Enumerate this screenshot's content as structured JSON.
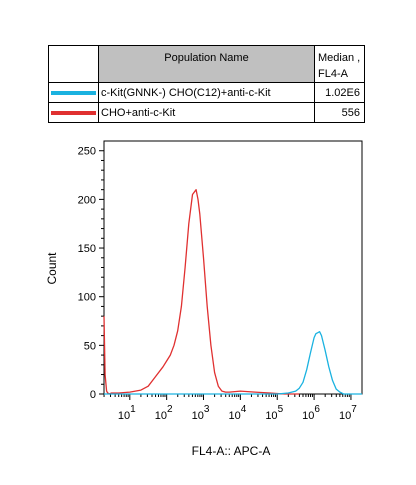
{
  "legend": {
    "header_population": "Population Name",
    "header_median_line1": "Median ,",
    "header_median_line2": "FL4-A",
    "rows": [
      {
        "name": "c-Kit(GNNK-) CHO(C12)+anti-c-Kit",
        "median": "1.02E6",
        "color": "#1ab2e0"
      },
      {
        "name": "CHO+anti-c-Kit",
        "median": "556",
        "color": "#e03030"
      }
    ]
  },
  "chart_data": {
    "type": "line",
    "xlabel": "FL4-A:: APC-A",
    "ylabel": "Count",
    "xscale": "log",
    "xlim_log10": [
      0.3,
      7.3
    ],
    "ylim": [
      0,
      260
    ],
    "y_ticks": [
      "0",
      "50",
      "100",
      "150",
      "200",
      "250"
    ],
    "x_ticks": [
      {
        "base": "10",
        "exp": "1",
        "at_log10": 1
      },
      {
        "base": "10",
        "exp": "2",
        "at_log10": 2
      },
      {
        "base": "10",
        "exp": "3",
        "at_log10": 3
      },
      {
        "base": "10",
        "exp": "4",
        "at_log10": 4
      },
      {
        "base": "10",
        "exp": "5",
        "at_log10": 5
      },
      {
        "base": "10",
        "exp": "6",
        "at_log10": 6
      },
      {
        "base": "10",
        "exp": "7",
        "at_log10": 7
      }
    ],
    "series": [
      {
        "name": "CHO+anti-c-Kit",
        "color": "#e03030",
        "x_log10": [
          0.3,
          0.33,
          0.37,
          0.4,
          0.45,
          0.5,
          0.7,
          1.0,
          1.3,
          1.5,
          1.7,
          1.9,
          2.0,
          2.1,
          2.2,
          2.3,
          2.4,
          2.5,
          2.6,
          2.7,
          2.8,
          2.85,
          2.9,
          3.0,
          3.1,
          3.2,
          3.3,
          3.4,
          3.5,
          3.6,
          3.7,
          4.0,
          4.4,
          4.8,
          5.2,
          5.6
        ],
        "y": [
          80,
          20,
          3,
          1,
          0,
          1,
          1,
          2,
          4,
          8,
          18,
          28,
          34,
          40,
          50,
          65,
          90,
          130,
          175,
          205,
          210,
          200,
          185,
          140,
          90,
          50,
          22,
          8,
          3,
          2,
          2,
          3,
          2,
          1,
          0,
          0
        ]
      },
      {
        "name": "c-Kit(GNNK-) CHO(C12)+anti-c-Kit",
        "color": "#1ab2e0",
        "x_log10": [
          0.3,
          4.0,
          5.0,
          5.3,
          5.5,
          5.6,
          5.7,
          5.8,
          5.9,
          6.0,
          6.05,
          6.1,
          6.15,
          6.2,
          6.3,
          6.4,
          6.5,
          6.6,
          6.7,
          6.8,
          7.3
        ],
        "y": [
          0,
          0,
          0,
          1,
          3,
          6,
          12,
          25,
          42,
          58,
          62,
          63,
          64,
          60,
          45,
          28,
          14,
          5,
          2,
          0,
          0
        ]
      }
    ]
  }
}
